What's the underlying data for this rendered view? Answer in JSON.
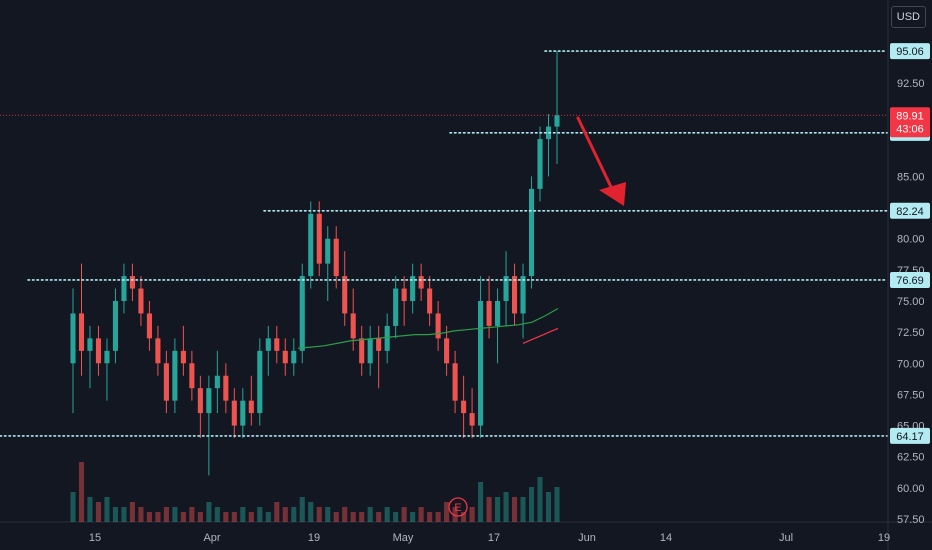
{
  "currency_label": "USD",
  "colors": {
    "background": "#131722",
    "up": "#26a69a",
    "down": "#ef5350",
    "hline": "#b2ebf2",
    "last_price": "#f23645",
    "arrow": "#e0232e",
    "sma_green": "#2e9e49",
    "sma_red": "#f23645"
  },
  "chart_data": {
    "type": "candlestick",
    "title": "",
    "y_axis": {
      "ticks": [
        "57.50",
        "60.00",
        "62.50",
        "65.00",
        "67.50",
        "70.00",
        "72.50",
        "75.00",
        "77.50",
        "80.00",
        "85.00",
        "92.50"
      ],
      "range": [
        57.0,
        97.5
      ]
    },
    "x_axis": {
      "labels": [
        "15",
        "Apr",
        "19",
        "May",
        "17",
        "Jun",
        "14",
        "Jul",
        "19"
      ]
    },
    "horizontal_lines": [
      {
        "value": 95.06,
        "label": "95.06"
      },
      {
        "value": 88.5,
        "label": "88.50"
      },
      {
        "value": 82.24,
        "label": "82.24"
      },
      {
        "value": 76.69,
        "label": "76.69"
      },
      {
        "value": 64.17,
        "label": "64.17"
      }
    ],
    "last_price": {
      "value": 89.91,
      "label": "89.91",
      "countdown": "43:06"
    },
    "candles_ohlc": [
      [
        70,
        76,
        66,
        74
      ],
      [
        74,
        78,
        69,
        71
      ],
      [
        71,
        73,
        68,
        72
      ],
      [
        72,
        73,
        69,
        70
      ],
      [
        70,
        72,
        67,
        71
      ],
      [
        71,
        76,
        70,
        75
      ],
      [
        75,
        78,
        74,
        77
      ],
      [
        77,
        78,
        75,
        76
      ],
      [
        76,
        77,
        73,
        74
      ],
      [
        74,
        75,
        71,
        72
      ],
      [
        72,
        73,
        69,
        70
      ],
      [
        70,
        71,
        66,
        67
      ],
      [
        67,
        72,
        66,
        71
      ],
      [
        71,
        73,
        69,
        70
      ],
      [
        70,
        71,
        67,
        68
      ],
      [
        68,
        69,
        64,
        66
      ],
      [
        66,
        69,
        61,
        68
      ],
      [
        68,
        71,
        66,
        69
      ],
      [
        69,
        70,
        66,
        67
      ],
      [
        67,
        68,
        64,
        65
      ],
      [
        65,
        68,
        64,
        67
      ],
      [
        67,
        69,
        65,
        66
      ],
      [
        66,
        72,
        65,
        71
      ],
      [
        71,
        73,
        69,
        72
      ],
      [
        72,
        73,
        70,
        71
      ],
      [
        71,
        72,
        69,
        70
      ],
      [
        70,
        72,
        69,
        71
      ],
      [
        71,
        78,
        70,
        77
      ],
      [
        77,
        83,
        76,
        82
      ],
      [
        82,
        83,
        77,
        78
      ],
      [
        78,
        81,
        75,
        80
      ],
      [
        80,
        81,
        76,
        77
      ],
      [
        77,
        79,
        73,
        74
      ],
      [
        74,
        76,
        71,
        72
      ],
      [
        72,
        73,
        69,
        70
      ],
      [
        70,
        73,
        69,
        72
      ],
      [
        72,
        73,
        68,
        71
      ],
      [
        71,
        74,
        70,
        73
      ],
      [
        73,
        77,
        72,
        76
      ],
      [
        76,
        77,
        73,
        75
      ],
      [
        75,
        78,
        74,
        77
      ],
      [
        77,
        78,
        75,
        76
      ],
      [
        76,
        77,
        73,
        74
      ],
      [
        74,
        75,
        71,
        72
      ],
      [
        72,
        73,
        69,
        70
      ],
      [
        70,
        71,
        66,
        67
      ],
      [
        67,
        69,
        64,
        66
      ],
      [
        66,
        68,
        64,
        65
      ],
      [
        65,
        77,
        64,
        75
      ],
      [
        75,
        77,
        72,
        73
      ],
      [
        73,
        76,
        70,
        75
      ],
      [
        75,
        79,
        73,
        77
      ],
      [
        77,
        78,
        73,
        74
      ],
      [
        74,
        78,
        72,
        77
      ],
      [
        77,
        85,
        76,
        84
      ],
      [
        84,
        89,
        83,
        88
      ],
      [
        88,
        90,
        85,
        89
      ],
      [
        89,
        95.06,
        86,
        89.91
      ]
    ],
    "moving_averages": [
      {
        "color": "green",
        "values": [
          71.2,
          71.3,
          71.4,
          71.6,
          71.8,
          71.9,
          72.0,
          72.1,
          72.2,
          72.3,
          72.3,
          72.4,
          72.6,
          72.7,
          72.8,
          72.9,
          73.0,
          73.1,
          73.3,
          73.8,
          74.4
        ]
      },
      {
        "color": "red",
        "values": [
          71.6,
          71.9,
          72.2,
          72.5,
          72.8
        ]
      }
    ],
    "volume": [
      6,
      12,
      5,
      4,
      5,
      3,
      3,
      4,
      3,
      2,
      2,
      3,
      3,
      2,
      3,
      2,
      4,
      3,
      2,
      2,
      3,
      2,
      3,
      2,
      4,
      3,
      3,
      5,
      4,
      3,
      3,
      2,
      3,
      2,
      2,
      3,
      2,
      3,
      2,
      3,
      2,
      3,
      2,
      2,
      4,
      3,
      2,
      3,
      8,
      5,
      5,
      6,
      5,
      5,
      7,
      9,
      6,
      7
    ],
    "annotations": [
      {
        "type": "earnings",
        "label": "E"
      },
      {
        "type": "arrow",
        "direction": "down"
      }
    ]
  }
}
